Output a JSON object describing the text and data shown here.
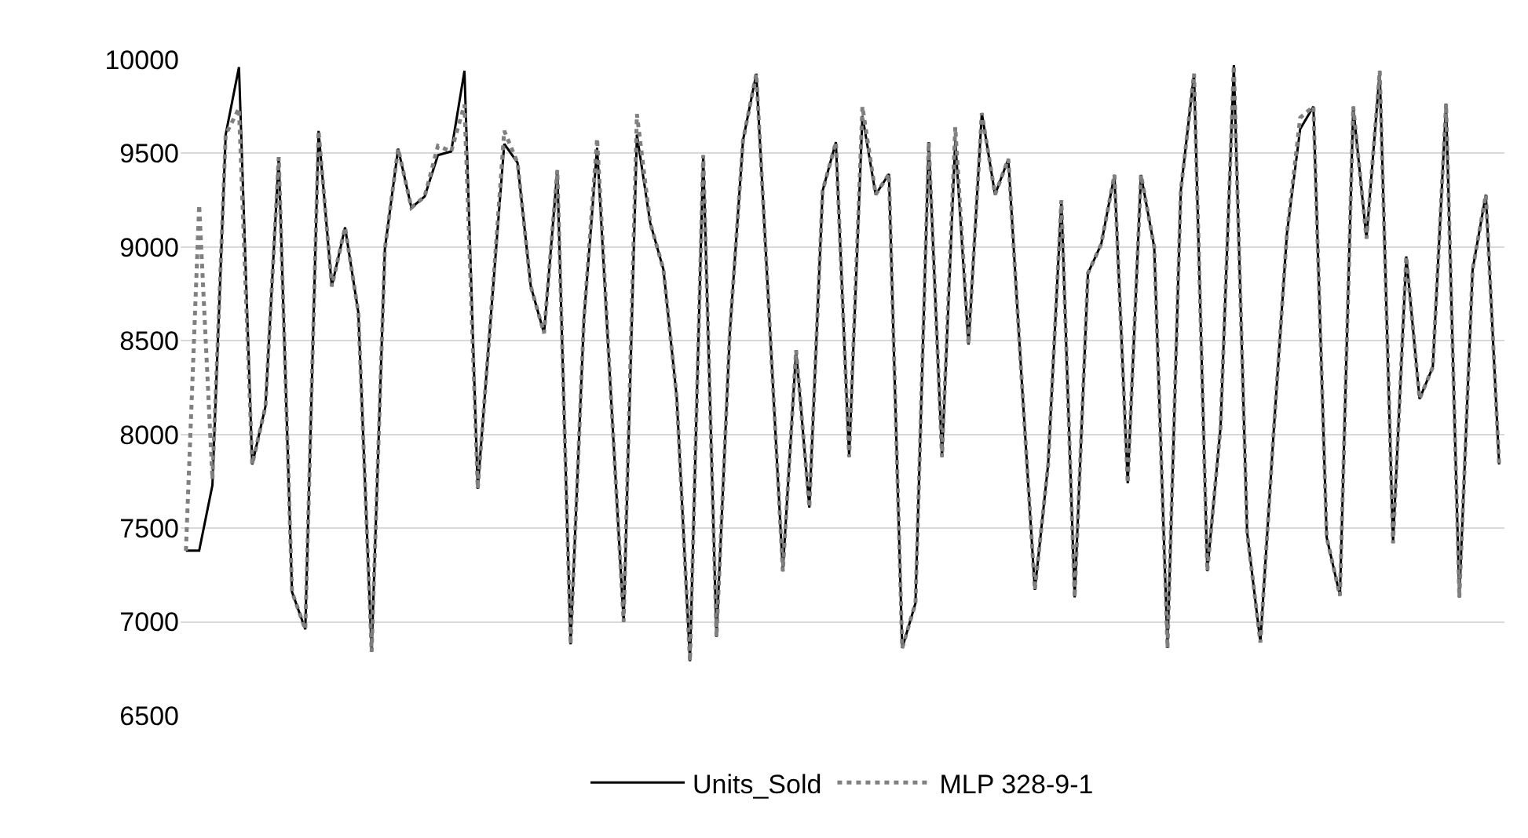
{
  "chart_data": {
    "type": "line",
    "categories": [
      null,
      null,
      null,
      null,
      null,
      null,
      null,
      null,
      null,
      null,
      null,
      null,
      null,
      null,
      null,
      null,
      null,
      null,
      null,
      null,
      null,
      null,
      null,
      null,
      null,
      null,
      null,
      null,
      null,
      null,
      null,
      null,
      null,
      null,
      null,
      null,
      null,
      null,
      null,
      null,
      null,
      null,
      null,
      null,
      null,
      null,
      null,
      null,
      null,
      null,
      null,
      null,
      null,
      null,
      null,
      null,
      null,
      null,
      null,
      null,
      null,
      null,
      null,
      null,
      null,
      null,
      null,
      null,
      null,
      null,
      null,
      null,
      null,
      null,
      null,
      null,
      null,
      null,
      null,
      null,
      null,
      null,
      null,
      null,
      null,
      null,
      null,
      null,
      null,
      null,
      null,
      null,
      null,
      null,
      null,
      null,
      null,
      null,
      null,
      null
    ],
    "series": [
      {
        "name": "Units_Sold",
        "color": "#000000",
        "line_style": "solid",
        "values": [
          7380,
          7380,
          7730,
          9600,
          9960,
          7840,
          8150,
          9480,
          7160,
          6960,
          9620,
          8790,
          9105,
          8650,
          6840,
          8990,
          9525,
          9210,
          9270,
          9490,
          9510,
          9940,
          7710,
          8640,
          9550,
          9450,
          8790,
          8540,
          9410,
          6880,
          8610,
          9530,
          8260,
          7000,
          9600,
          9130,
          8880,
          8200,
          6790,
          9490,
          6920,
          8540,
          9570,
          9925,
          8600,
          7270,
          8450,
          7610,
          9300,
          9560,
          7880,
          9700,
          9280,
          9390,
          6860,
          7100,
          9560,
          7880,
          9570,
          8480,
          9715,
          9280,
          9470,
          8300,
          7170,
          7840,
          9250,
          7130,
          8860,
          9015,
          9385,
          7740,
          9385,
          9000,
          6860,
          9300,
          9925,
          7270,
          8040,
          9970,
          7480,
          6890,
          8010,
          9070,
          9630,
          9750,
          7450,
          7140,
          9750,
          9045,
          9940,
          7420,
          8950,
          8190,
          8360,
          9765,
          7130,
          8880,
          9280,
          7840
        ]
      },
      {
        "name": "MLP 328-9-1",
        "color": "#808080",
        "line_style": "dotted",
        "values": [
          7380,
          9225,
          7760,
          9600,
          9740,
          7840,
          8150,
          9480,
          7160,
          6960,
          9620,
          8790,
          9105,
          8650,
          6840,
          8990,
          9525,
          9210,
          9270,
          9540,
          9510,
          9760,
          7710,
          8640,
          9620,
          9450,
          8790,
          8540,
          9410,
          6880,
          8610,
          9580,
          8260,
          7000,
          9710,
          9130,
          8880,
          8200,
          6790,
          9490,
          6920,
          8540,
          9570,
          9925,
          8600,
          7270,
          8450,
          7610,
          9300,
          9560,
          7880,
          9750,
          9280,
          9390,
          6860,
          7100,
          9560,
          7880,
          9640,
          8480,
          9715,
          9280,
          9470,
          8300,
          7170,
          7840,
          9250,
          7130,
          8860,
          9015,
          9385,
          7740,
          9385,
          9000,
          6860,
          9300,
          9925,
          7270,
          8040,
          9970,
          7480,
          6890,
          8010,
          9070,
          9690,
          9750,
          7450,
          7140,
          9750,
          9045,
          9940,
          7420,
          8950,
          8190,
          8360,
          9765,
          7130,
          8880,
          9280,
          7840
        ]
      }
    ],
    "ylim": [
      6500,
      10000
    ],
    "yticks": [
      6500,
      7000,
      7500,
      8000,
      8500,
      9000,
      9500,
      10000
    ],
    "grid": "y",
    "legend": "bottom",
    "marker": "none",
    "tick_labels": "y"
  }
}
